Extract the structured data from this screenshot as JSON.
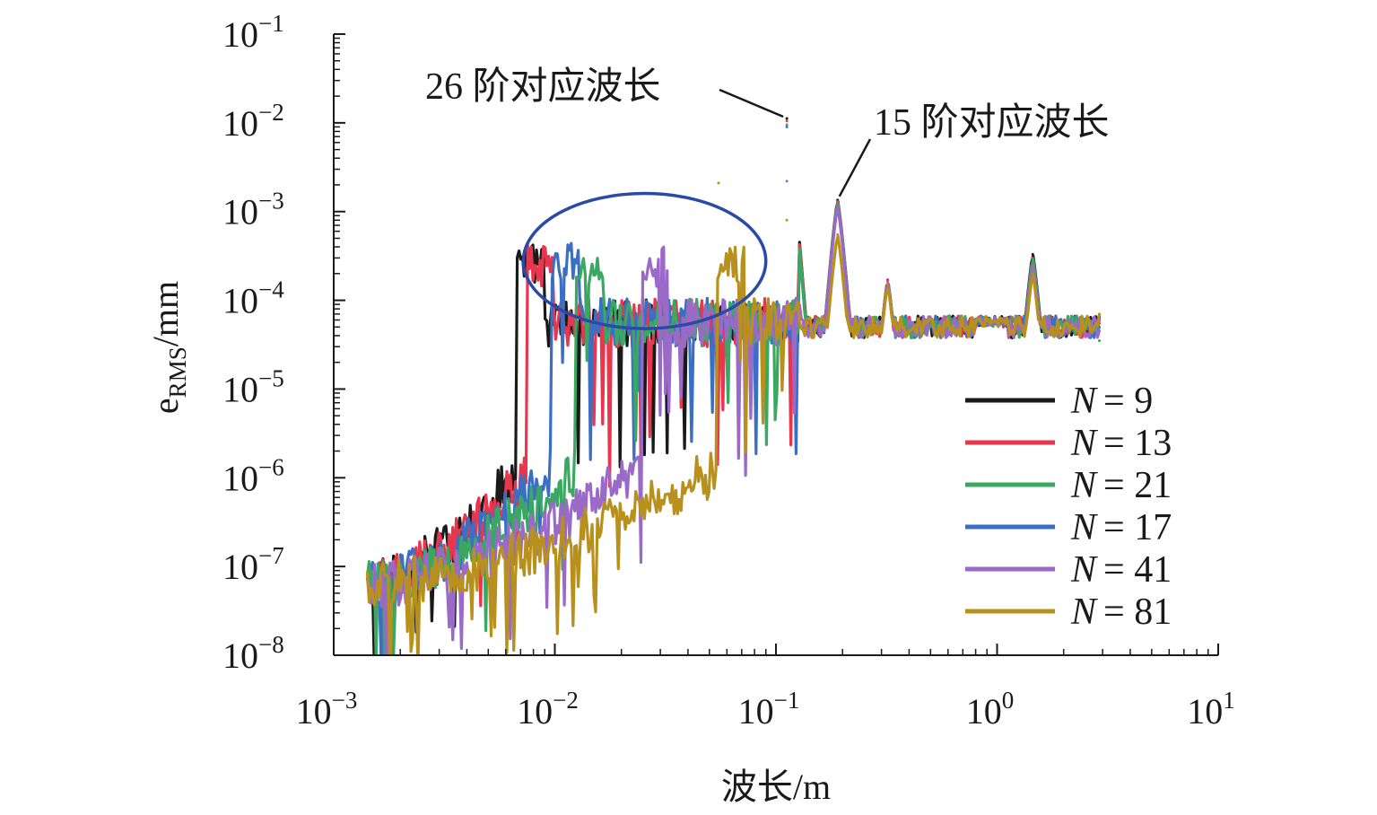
{
  "chart_data": {
    "type": "line",
    "xlabel": "波长/m",
    "ylabel_main": "e",
    "ylabel_sub": "RMS",
    "ylabel_unit": "/mm",
    "x_scale": "log",
    "y_scale": "log",
    "xlim": [
      0.001,
      10
    ],
    "ylim": [
      1e-08,
      0.1
    ],
    "x_ticks": [
      {
        "value": 0.001,
        "base": "10",
        "exp": "−3"
      },
      {
        "value": 0.01,
        "base": "10",
        "exp": "−2"
      },
      {
        "value": 0.1,
        "base": "10",
        "exp": "−1"
      },
      {
        "value": 1,
        "base": "10",
        "exp": "0"
      },
      {
        "value": 10,
        "base": "10",
        "exp": "1"
      }
    ],
    "y_ticks": [
      {
        "value": 0.1,
        "base": "10",
        "exp": "−1"
      },
      {
        "value": 0.01,
        "base": "10",
        "exp": "−2"
      },
      {
        "value": 0.001,
        "base": "10",
        "exp": "−3"
      },
      {
        "value": 0.0001,
        "base": "10",
        "exp": "−4"
      },
      {
        "value": 1e-05,
        "base": "10",
        "exp": "−5"
      },
      {
        "value": 1e-06,
        "base": "10",
        "exp": "−6"
      },
      {
        "value": 1e-07,
        "base": "10",
        "exp": "−7"
      },
      {
        "value": 1e-08,
        "base": "10",
        "exp": "−8"
      }
    ],
    "legend_position": "lower-right",
    "series": [
      {
        "name": "N = 9",
        "legend_var": "N",
        "legend_value": "= 9",
        "color": "#1a1a1a",
        "cutoff": 0.0068,
        "peaks": [
          [
            0.112,
            0.0112
          ],
          [
            0.19,
            0.00135
          ],
          [
            0.32,
            0.00017
          ],
          [
            1.45,
            0.00033
          ],
          [
            2.9,
            6.5e-05
          ]
        ]
      },
      {
        "name": "N = 13",
        "legend_var": "N",
        "legend_value": "= 13",
        "color": "#e8364f",
        "cutoff": 0.0075,
        "peaks": [
          [
            0.112,
            0.0105
          ],
          [
            0.19,
            0.0013
          ],
          [
            0.32,
            0.00017
          ],
          [
            1.45,
            0.0003
          ],
          [
            2.9,
            5.5e-05
          ]
        ]
      },
      {
        "name": "N = 21",
        "legend_var": "N",
        "legend_value": "= 21",
        "color": "#3aa860",
        "cutoff": 0.0125,
        "peaks": [
          [
            0.112,
            0.0095
          ],
          [
            0.19,
            0.00125
          ],
          [
            0.32,
            0.00016
          ],
          [
            1.45,
            0.00029
          ],
          [
            2.9,
            3.5e-05
          ]
        ]
      },
      {
        "name": "N = 17",
        "legend_var": "N",
        "legend_value": "= 17",
        "color": "#3b6fc4",
        "cutoff": 0.0098,
        "peaks": [
          [
            0.112,
            0.009
          ],
          [
            0.19,
            0.0012
          ],
          [
            0.32,
            0.00016
          ],
          [
            1.45,
            0.00028
          ],
          [
            2.9,
            5e-05
          ]
        ]
      },
      {
        "name": "N = 41",
        "legend_var": "N",
        "legend_value": "= 41",
        "color": "#9b6ac8",
        "cutoff": 0.025,
        "peaks": [
          [
            0.112,
            0.0022
          ],
          [
            0.19,
            0.00115
          ],
          [
            0.32,
            0.00016
          ],
          [
            1.45,
            0.00024
          ],
          [
            2.9,
            4.5e-05
          ]
        ]
      },
      {
        "name": "N = 81",
        "legend_var": "N",
        "legend_value": "= 81",
        "color": "#b8901e",
        "cutoff": 0.055,
        "peaks": [
          [
            0.055,
            0.0021
          ],
          [
            0.112,
            0.0008
          ],
          [
            0.19,
            0.00055
          ],
          [
            0.32,
            0.00015
          ],
          [
            1.45,
            0.0002
          ],
          [
            2.9,
            7e-05
          ]
        ]
      }
    ],
    "annotations": [
      {
        "text": "26 阶对应波长",
        "target": [
          0.112,
          0.0112
        ]
      },
      {
        "text": "15 阶对应波长",
        "target": [
          0.19,
          0.00135
        ]
      }
    ],
    "highlight_ellipse": {
      "x_range": [
        0.0072,
        0.09
      ],
      "y_center": 0.00028,
      "y_low": 4.8e-05,
      "y_high": 0.0016
    }
  }
}
